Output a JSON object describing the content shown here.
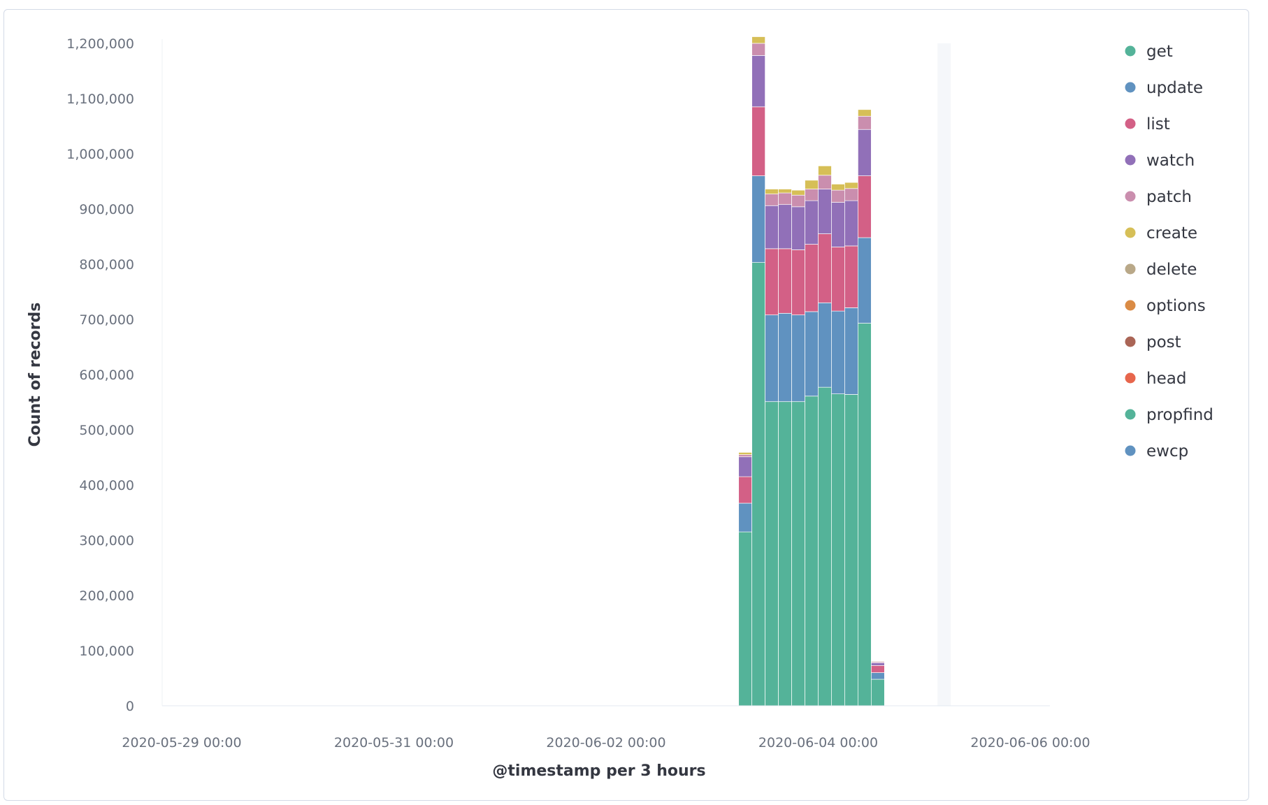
{
  "chart_data": {
    "type": "bar",
    "stacked": true,
    "title": "",
    "xlabel": "@timestamp per 3 hours",
    "ylabel": "Count of records",
    "ylim": [
      0,
      1200000
    ],
    "y_ticks": [
      "0",
      "100,000",
      "200,000",
      "300,000",
      "400,000",
      "500,000",
      "600,000",
      "700,000",
      "800,000",
      "900,000",
      "1,000,000",
      "1,100,000",
      "1,200,000"
    ],
    "y_tick_values": [
      0,
      100000,
      200000,
      300000,
      400000,
      500000,
      600000,
      700000,
      800000,
      900000,
      1000000,
      1100000,
      1200000
    ],
    "xlim": [
      "2020-05-29 00:00",
      "2020-06-06 00:00"
    ],
    "x_ticks": [
      "2020-05-29 00:00",
      "2020-05-31 00:00",
      "2020-06-02 00:00",
      "2020-06-04 00:00",
      "2020-06-06 00:00"
    ],
    "current_time_band": [
      "2020-06-05 03:00",
      "2020-06-05 06:00"
    ],
    "legend_position": "right",
    "grid": false,
    "x": [
      "2020-06-03 06:00",
      "2020-06-03 09:00",
      "2020-06-03 12:00",
      "2020-06-03 15:00",
      "2020-06-03 18:00",
      "2020-06-03 21:00",
      "2020-06-04 00:00",
      "2020-06-04 03:00",
      "2020-06-04 06:00",
      "2020-06-04 09:00",
      "2020-06-04 12:00",
      "2020-06-04 15:00"
    ],
    "series": [
      {
        "name": "get",
        "color": "#54b399",
        "values": [
          315000,
          803000,
          551000,
          551000,
          551000,
          561000,
          577000,
          565000,
          564000,
          693000,
          48000,
          0
        ]
      },
      {
        "name": "update",
        "color": "#6092c0",
        "values": [
          52000,
          157000,
          157000,
          160000,
          157000,
          153000,
          153000,
          150000,
          157000,
          155000,
          12000,
          0
        ]
      },
      {
        "name": "list",
        "color": "#d36086",
        "values": [
          48000,
          125000,
          120000,
          117000,
          118000,
          122000,
          125000,
          116000,
          112000,
          112000,
          13000,
          0
        ]
      },
      {
        "name": "watch",
        "color": "#9170b8",
        "values": [
          36000,
          93000,
          78000,
          80000,
          78000,
          79000,
          81000,
          81000,
          82000,
          84000,
          5000,
          0
        ]
      },
      {
        "name": "patch",
        "color": "#ca8eae",
        "values": [
          4000,
          22000,
          21000,
          21000,
          21000,
          21000,
          25000,
          22000,
          22000,
          24000,
          2000,
          0
        ]
      },
      {
        "name": "create",
        "color": "#d6bf57",
        "values": [
          4000,
          12000,
          9000,
          7000,
          9000,
          16000,
          17000,
          11000,
          11000,
          12000,
          1000,
          0
        ]
      },
      {
        "name": "delete",
        "color": "#b9a888",
        "values": [
          0,
          0,
          0,
          0,
          0,
          0,
          0,
          0,
          0,
          0,
          0,
          0
        ]
      },
      {
        "name": "options",
        "color": "#da8b45",
        "values": [
          0,
          0,
          0,
          0,
          0,
          0,
          0,
          0,
          0,
          0,
          0,
          0
        ]
      },
      {
        "name": "post",
        "color": "#aa6556",
        "values": [
          0,
          0,
          0,
          0,
          0,
          0,
          0,
          0,
          0,
          0,
          0,
          0
        ]
      },
      {
        "name": "head",
        "color": "#e7664c",
        "values": [
          0,
          0,
          0,
          0,
          0,
          0,
          0,
          0,
          0,
          0,
          0,
          0
        ]
      },
      {
        "name": "propfind",
        "color": "#54b399",
        "values": [
          0,
          0,
          0,
          0,
          0,
          0,
          0,
          0,
          0,
          0,
          0,
          0
        ]
      },
      {
        "name": "ewcp",
        "color": "#6092c0",
        "values": [
          0,
          0,
          0,
          0,
          0,
          0,
          0,
          0,
          0,
          0,
          0,
          0
        ]
      }
    ]
  }
}
